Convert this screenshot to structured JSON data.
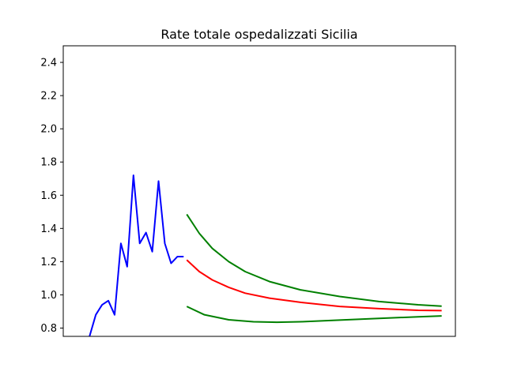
{
  "chart_data": {
    "type": "line",
    "title": "Rate totale ospedalizzati Sicilia",
    "xlabel": "",
    "ylabel": "",
    "xlim": [
      0,
      100
    ],
    "ylim": [
      0.75,
      2.5
    ],
    "yticks": [
      "0.8",
      "1.0",
      "1.2",
      "1.4",
      "1.6",
      "1.8",
      "2.0",
      "2.2",
      "2.4"
    ],
    "show_xticks": false,
    "grid": false,
    "series": [
      {
        "color": "#0000ff",
        "x": [
          6.7,
          8.3,
          9.9,
          11.5,
          13.1,
          14.7,
          16.3,
          17.9,
          19.5,
          21.1,
          22.7,
          24.3,
          25.9,
          27.5,
          29.1,
          30.7
        ],
        "y": [
          0.75,
          0.88,
          0.94,
          0.965,
          0.88,
          1.31,
          1.17,
          1.72,
          1.31,
          1.375,
          1.26,
          1.685,
          1.31,
          1.19,
          1.23,
          1.23
        ]
      },
      {
        "color": "#ff0000",
        "x": [
          31.5,
          34.7,
          38.0,
          42.2,
          46.4,
          52.6,
          60.5,
          70.5,
          80.5,
          90.5,
          96.5
        ],
        "y": [
          1.21,
          1.14,
          1.09,
          1.045,
          1.01,
          0.98,
          0.955,
          0.93,
          0.917,
          0.907,
          0.905
        ]
      },
      {
        "color": "#008000",
        "x": [
          31.5,
          34.7,
          38.0,
          42.2,
          46.4,
          52.6,
          60.5,
          70.5,
          80.5,
          90.5,
          96.5
        ],
        "y": [
          1.485,
          1.37,
          1.28,
          1.2,
          1.14,
          1.08,
          1.03,
          0.99,
          0.96,
          0.94,
          0.932
        ]
      },
      {
        "color": "#008000",
        "x": [
          31.5,
          36.0,
          42.2,
          48.5,
          54.5,
          60.5,
          70.5,
          80.5,
          90.5,
          96.5
        ],
        "y": [
          0.93,
          0.88,
          0.85,
          0.838,
          0.835,
          0.838,
          0.848,
          0.858,
          0.868,
          0.873
        ]
      }
    ]
  }
}
